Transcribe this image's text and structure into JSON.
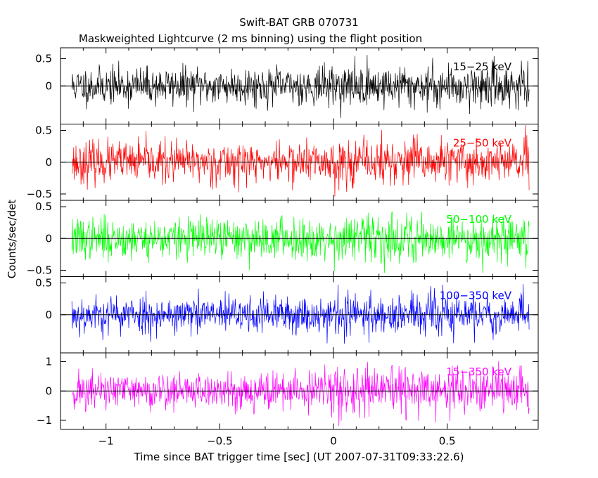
{
  "chart_data": {
    "type": "line",
    "title": "Swift-BAT GRB 070731",
    "subtitle": "Maskweighted Lightcurve (2 ms binning) using the flight position",
    "xlabel": "Time since BAT trigger time [sec] (UT 2007-07-31T09:33:22.6)",
    "ylabel": "Counts/sec/det",
    "xlim": [
      -1.2,
      0.9
    ],
    "x_range_data": [
      -1.15,
      0.86
    ],
    "bin_width_sec": 0.002,
    "x_ticks": [
      {
        "value": -1,
        "label": "−1"
      },
      {
        "value": -0.5,
        "label": "−0.5"
      },
      {
        "value": 0,
        "label": "0"
      },
      {
        "value": 0.5,
        "label": "0.5"
      }
    ],
    "panels": [
      {
        "name": "15-25 keV",
        "label": "15−25 keV",
        "color": "#000000",
        "ylim": [
          -0.7,
          0.7
        ],
        "noise_sd": 0.17,
        "seed": 11,
        "y_ticks": [
          {
            "value": 0,
            "label": "0"
          },
          {
            "value": 0.5,
            "label": "0.5"
          }
        ]
      },
      {
        "name": "25-50 keV",
        "label": "25−50 keV",
        "color": "#ff0000",
        "ylim": [
          -0.6,
          0.6
        ],
        "noise_sd": 0.16,
        "seed": 23,
        "y_ticks": [
          {
            "value": -0.5,
            "label": "−0.5"
          },
          {
            "value": 0,
            "label": "0"
          },
          {
            "value": 0.5,
            "label": "0.5"
          }
        ]
      },
      {
        "name": "50-100 keV",
        "label": "50−100 keV",
        "color": "#00ff00",
        "ylim": [
          -0.6,
          0.6
        ],
        "noise_sd": 0.16,
        "seed": 37,
        "y_ticks": [
          {
            "value": -0.5,
            "label": "−0.5"
          },
          {
            "value": 0,
            "label": "0"
          },
          {
            "value": 0.5,
            "label": "0.5"
          }
        ]
      },
      {
        "name": "100-350 keV",
        "label": "100−350 keV",
        "color": "#0000ff",
        "ylim": [
          -0.6,
          0.6
        ],
        "noise_sd": 0.15,
        "seed": 53,
        "y_ticks": [
          {
            "value": 0,
            "label": "0"
          },
          {
            "value": 0.5,
            "label": "0.5"
          }
        ]
      },
      {
        "name": "15-350 keV",
        "label": "15−350 keV",
        "color": "#ff00ff",
        "ylim": [
          -1.3,
          1.3
        ],
        "noise_sd": 0.33,
        "seed": 71,
        "y_ticks": [
          {
            "value": -1,
            "label": "−1"
          },
          {
            "value": 0,
            "label": "0"
          },
          {
            "value": 1,
            "label": "1"
          }
        ]
      }
    ]
  }
}
